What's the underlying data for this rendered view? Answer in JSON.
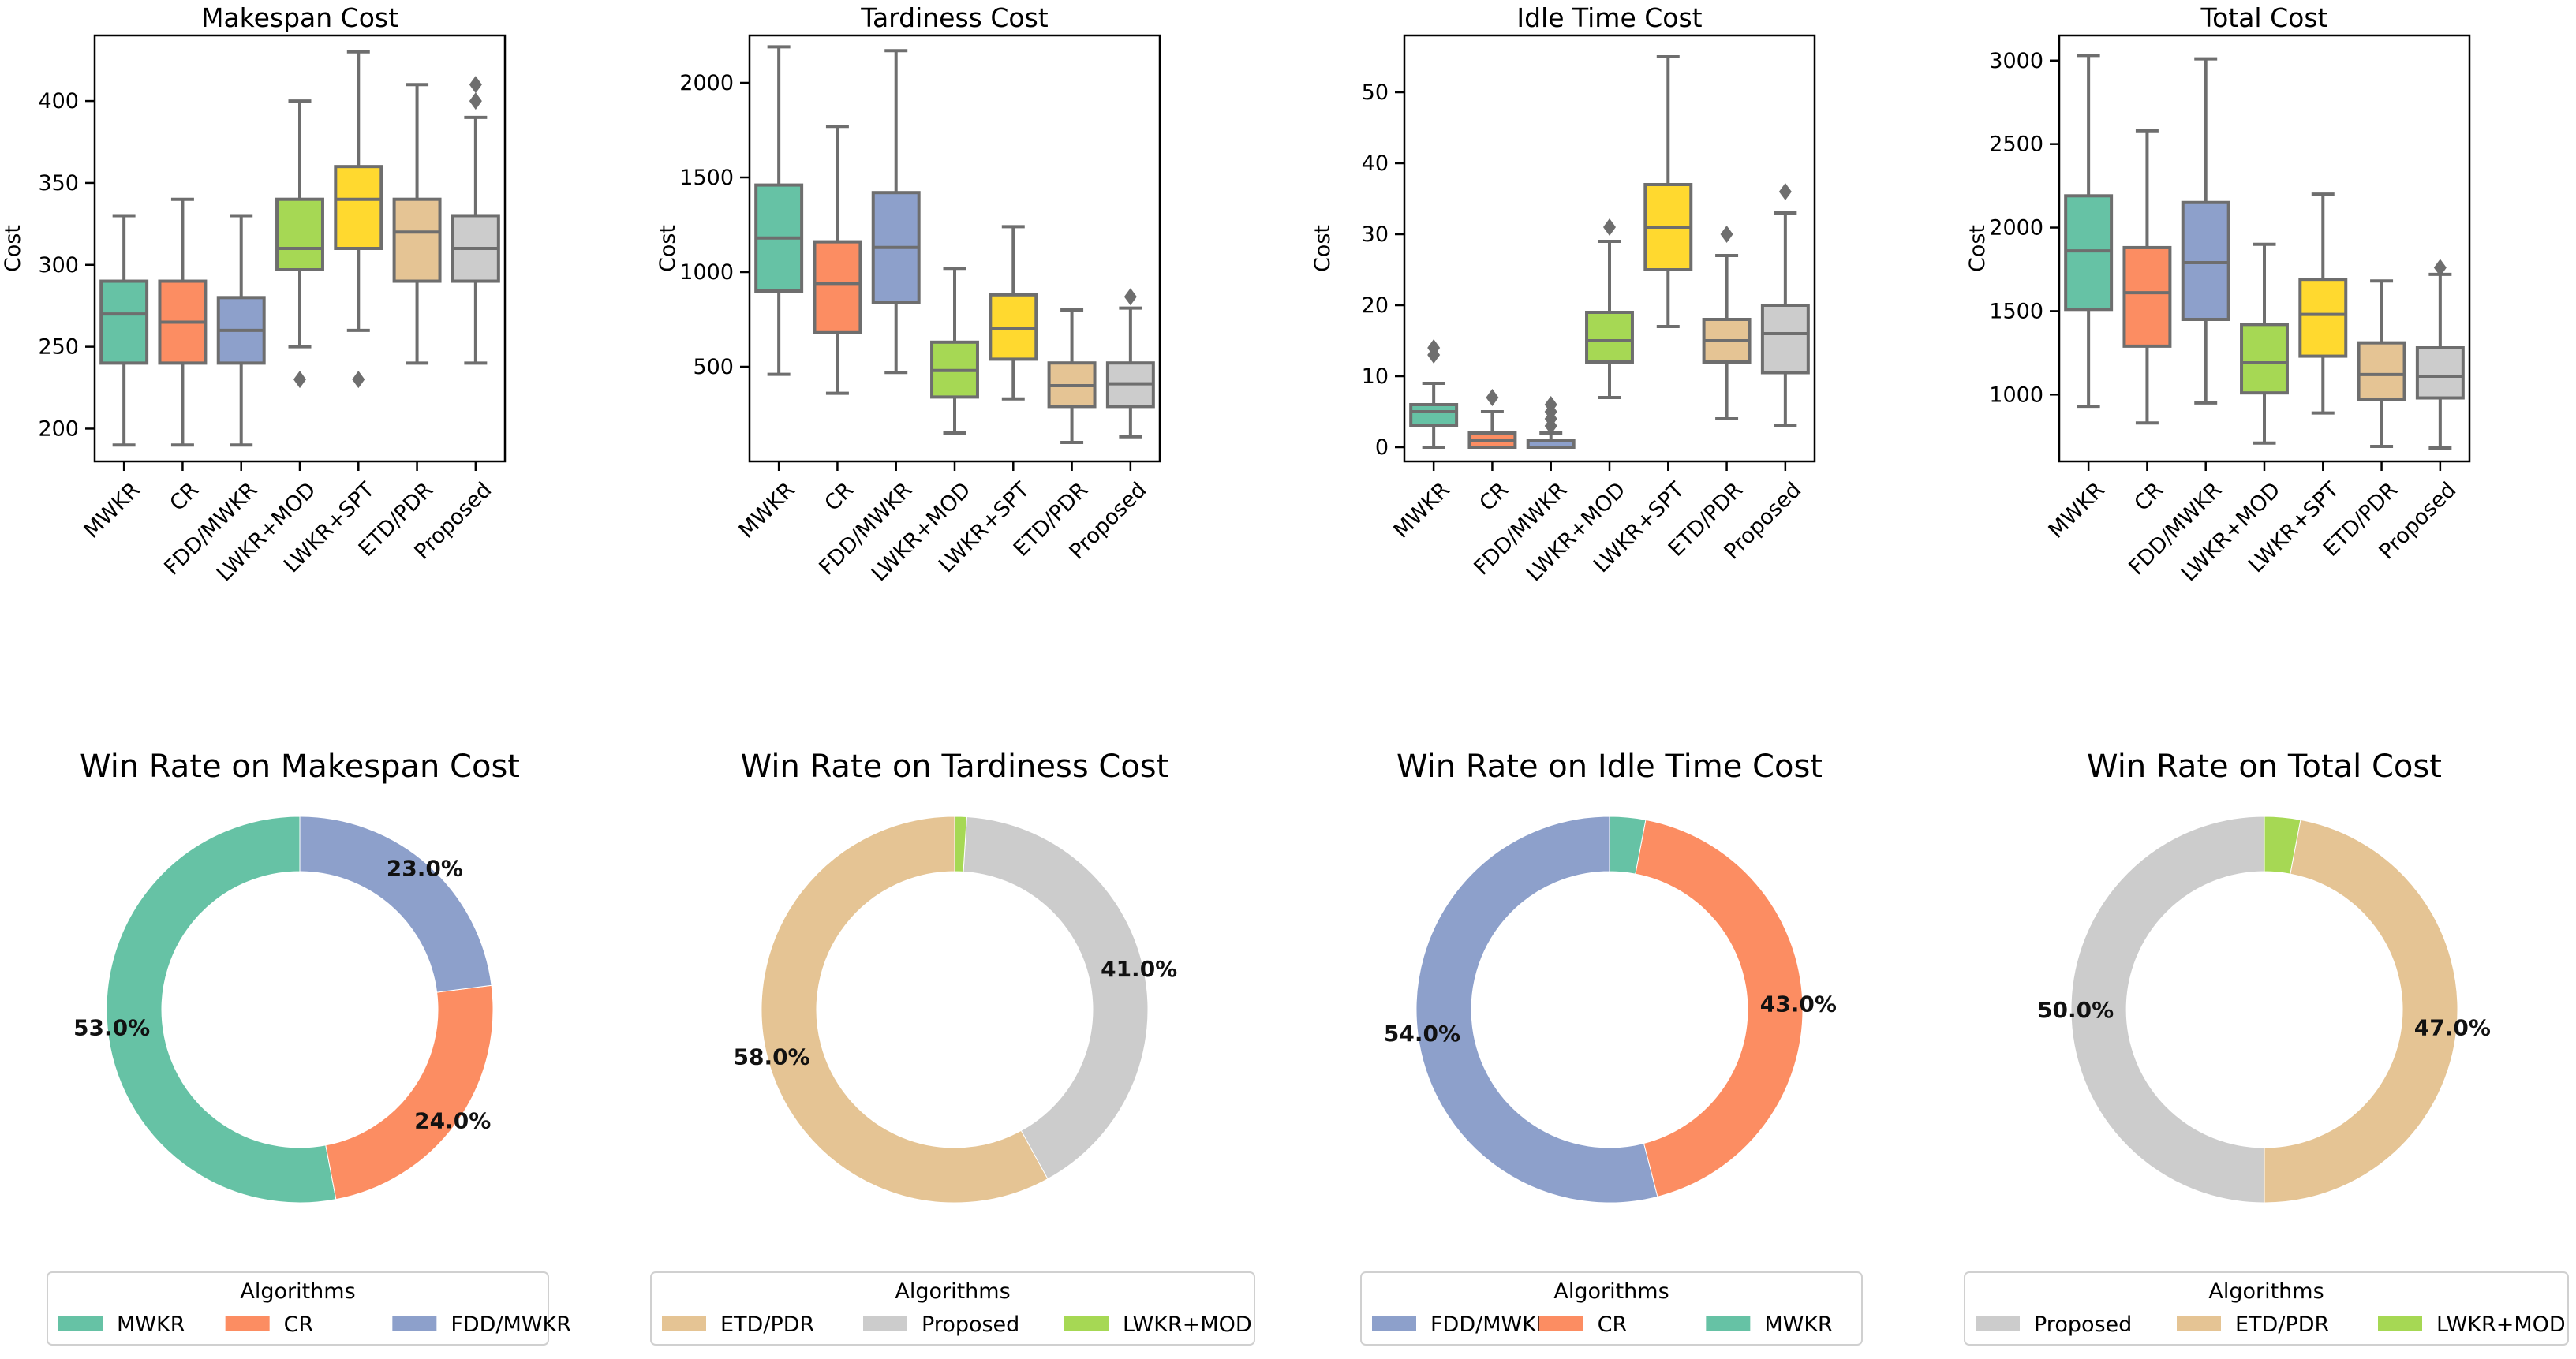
{
  "chart_data": [
    {
      "type": "box",
      "title": "Makespan Cost",
      "ylabel": "Cost",
      "categories": [
        "MWKR",
        "CR",
        "FDD/MWKR",
        "LWKR+MOD",
        "LWKR+SPT",
        "ETD/PDR",
        "Proposed"
      ],
      "ylim": [
        180,
        440
      ],
      "yticks": [
        200,
        250,
        300,
        350,
        400
      ],
      "colors": [
        "#66c2a5",
        "#fc8d62",
        "#8da0cb",
        "#a6d854",
        "#ffd92f",
        "#e5c494",
        "#cccccc"
      ],
      "boxes": [
        {
          "whislo": 190,
          "q1": 240,
          "med": 270,
          "q3": 290,
          "whishi": 330,
          "fliers": []
        },
        {
          "whislo": 190,
          "q1": 240,
          "med": 265,
          "q3": 290,
          "whishi": 340,
          "fliers": []
        },
        {
          "whislo": 190,
          "q1": 240,
          "med": 260,
          "q3": 280,
          "whishi": 330,
          "fliers": []
        },
        {
          "whislo": 250,
          "q1": 297,
          "med": 310,
          "q3": 340,
          "whishi": 400,
          "fliers": [
            230
          ]
        },
        {
          "whislo": 260,
          "q1": 310,
          "med": 340,
          "q3": 360,
          "whishi": 430,
          "fliers": [
            230
          ]
        },
        {
          "whislo": 240,
          "q1": 290,
          "med": 320,
          "q3": 340,
          "whishi": 410,
          "fliers": []
        },
        {
          "whislo": 240,
          "q1": 290,
          "med": 310,
          "q3": 330,
          "whishi": 390,
          "fliers": [
            400,
            410
          ]
        }
      ]
    },
    {
      "type": "box",
      "title": "Tardiness Cost",
      "ylabel": "Cost",
      "categories": [
        "MWKR",
        "CR",
        "FDD/MWKR",
        "LWKR+MOD",
        "LWKR+SPT",
        "ETD/PDR",
        "Proposed"
      ],
      "ylim": [
        0,
        2250
      ],
      "yticks": [
        500,
        1000,
        1500,
        2000
      ],
      "colors": [
        "#66c2a5",
        "#fc8d62",
        "#8da0cb",
        "#a6d854",
        "#ffd92f",
        "#e5c494",
        "#cccccc"
      ],
      "boxes": [
        {
          "whislo": 460,
          "q1": 900,
          "med": 1180,
          "q3": 1460,
          "whishi": 2190,
          "fliers": []
        },
        {
          "whislo": 360,
          "q1": 680,
          "med": 940,
          "q3": 1160,
          "whishi": 1770,
          "fliers": []
        },
        {
          "whislo": 470,
          "q1": 840,
          "med": 1130,
          "q3": 1420,
          "whishi": 2170,
          "fliers": []
        },
        {
          "whislo": 150,
          "q1": 340,
          "med": 480,
          "q3": 630,
          "whishi": 1020,
          "fliers": []
        },
        {
          "whislo": 330,
          "q1": 540,
          "med": 700,
          "q3": 880,
          "whishi": 1240,
          "fliers": []
        },
        {
          "whislo": 100,
          "q1": 290,
          "med": 400,
          "q3": 520,
          "whishi": 800,
          "fliers": []
        },
        {
          "whislo": 130,
          "q1": 290,
          "med": 410,
          "q3": 520,
          "whishi": 810,
          "fliers": [
            870
          ]
        }
      ]
    },
    {
      "type": "box",
      "title": "Idle Time Cost",
      "ylabel": "Cost",
      "categories": [
        "MWKR",
        "CR",
        "FDD/MWKR",
        "LWKR+MOD",
        "LWKR+SPT",
        "ETD/PDR",
        "Proposed"
      ],
      "ylim": [
        -2,
        58
      ],
      "yticks": [
        0,
        10,
        20,
        30,
        40,
        50
      ],
      "colors": [
        "#66c2a5",
        "#fc8d62",
        "#8da0cb",
        "#a6d854",
        "#ffd92f",
        "#e5c494",
        "#cccccc"
      ],
      "boxes": [
        {
          "whislo": 0,
          "q1": 3,
          "med": 5,
          "q3": 6,
          "whishi": 9,
          "fliers": [
            13,
            14
          ]
        },
        {
          "whislo": 0,
          "q1": 0,
          "med": 1,
          "q3": 2,
          "whishi": 5,
          "fliers": [
            7
          ]
        },
        {
          "whislo": 0,
          "q1": 0,
          "med": 0,
          "q3": 1,
          "whishi": 2,
          "fliers": [
            3,
            4,
            5,
            6
          ]
        },
        {
          "whislo": 7,
          "q1": 12,
          "med": 15,
          "q3": 19,
          "whishi": 29,
          "fliers": [
            31
          ]
        },
        {
          "whislo": 17,
          "q1": 25,
          "med": 31,
          "q3": 37,
          "whishi": 55,
          "fliers": []
        },
        {
          "whislo": 4,
          "q1": 12,
          "med": 15,
          "q3": 18,
          "whishi": 27,
          "fliers": [
            30
          ]
        },
        {
          "whislo": 3,
          "q1": 10.5,
          "med": 16,
          "q3": 20,
          "whishi": 33,
          "fliers": [
            36
          ]
        }
      ]
    },
    {
      "type": "box",
      "title": "Total Cost",
      "ylabel": "Cost",
      "categories": [
        "MWKR",
        "CR",
        "FDD/MWKR",
        "LWKR+MOD",
        "LWKR+SPT",
        "ETD/PDR",
        "Proposed"
      ],
      "ylim": [
        600,
        3150
      ],
      "yticks": [
        1000,
        1500,
        2000,
        2500,
        3000
      ],
      "colors": [
        "#66c2a5",
        "#fc8d62",
        "#8da0cb",
        "#a6d854",
        "#ffd92f",
        "#e5c494",
        "#cccccc"
      ],
      "boxes": [
        {
          "whislo": 930,
          "q1": 1510,
          "med": 1860,
          "q3": 2190,
          "whishi": 3030,
          "fliers": []
        },
        {
          "whislo": 830,
          "q1": 1290,
          "med": 1610,
          "q3": 1880,
          "whishi": 2580,
          "fliers": []
        },
        {
          "whislo": 950,
          "q1": 1450,
          "med": 1790,
          "q3": 2150,
          "whishi": 3010,
          "fliers": []
        },
        {
          "whislo": 710,
          "q1": 1010,
          "med": 1190,
          "q3": 1420,
          "whishi": 1900,
          "fliers": []
        },
        {
          "whislo": 890,
          "q1": 1230,
          "med": 1480,
          "q3": 1690,
          "whishi": 2200,
          "fliers": []
        },
        {
          "whislo": 690,
          "q1": 970,
          "med": 1120,
          "q3": 1310,
          "whishi": 1680,
          "fliers": []
        },
        {
          "whislo": 680,
          "q1": 980,
          "med": 1110,
          "q3": 1280,
          "whishi": 1720,
          "fliers": [
            1760
          ]
        }
      ]
    },
    {
      "type": "donut",
      "title": "Win Rate on Makespan Cost",
      "slices": [
        {
          "label": "MWKR",
          "value": 53.0,
          "color": "#66c2a5",
          "text": "53.0%"
        },
        {
          "label": "CR",
          "value": 24.0,
          "color": "#fc8d62",
          "text": "24.0%"
        },
        {
          "label": "FDD/MWKR",
          "value": 23.0,
          "color": "#8da0cb",
          "text": "23.0%"
        }
      ],
      "legend_title": "Algorithms",
      "legend_items": [
        {
          "label": "MWKR",
          "color": "#66c2a5"
        },
        {
          "label": "CR",
          "color": "#fc8d62"
        },
        {
          "label": "FDD/MWKR",
          "color": "#8da0cb"
        }
      ]
    },
    {
      "type": "donut",
      "title": "Win Rate on Tardiness Cost",
      "slices": [
        {
          "label": "ETD/PDR",
          "value": 58.0,
          "color": "#e5c494",
          "text": "58.0%"
        },
        {
          "label": "Proposed",
          "value": 41.0,
          "color": "#cccccc",
          "text": "41.0%"
        },
        {
          "label": "LWKR+MOD",
          "value": 1.0,
          "color": "#a6d854",
          "text": ""
        }
      ],
      "legend_title": "Algorithms",
      "legend_items": [
        {
          "label": "ETD/PDR",
          "color": "#e5c494"
        },
        {
          "label": "Proposed",
          "color": "#cccccc"
        },
        {
          "label": "LWKR+MOD",
          "color": "#a6d854"
        }
      ]
    },
    {
      "type": "donut",
      "title": "Win Rate on Idle Time Cost",
      "slices": [
        {
          "label": "FDD/MWKR",
          "value": 54.0,
          "color": "#8da0cb",
          "text": "54.0%"
        },
        {
          "label": "CR",
          "value": 43.0,
          "color": "#fc8d62",
          "text": "43.0%"
        },
        {
          "label": "MWKR",
          "value": 3.0,
          "color": "#66c2a5",
          "text": ""
        }
      ],
      "legend_title": "Algorithms",
      "legend_items": [
        {
          "label": "FDD/MWKR",
          "color": "#8da0cb"
        },
        {
          "label": "CR",
          "color": "#fc8d62"
        },
        {
          "label": "MWKR",
          "color": "#66c2a5"
        }
      ]
    },
    {
      "type": "donut",
      "title": "Win Rate on Total Cost",
      "slices": [
        {
          "label": "Proposed",
          "value": 50.0,
          "color": "#cccccc",
          "text": "50.0%"
        },
        {
          "label": "ETD/PDR",
          "value": 47.0,
          "color": "#e5c494",
          "text": "47.0%"
        },
        {
          "label": "LWKR+MOD",
          "value": 3.0,
          "color": "#a6d854",
          "text": ""
        }
      ],
      "legend_title": "Algorithms",
      "legend_items": [
        {
          "label": "Proposed",
          "color": "#cccccc"
        },
        {
          "label": "ETD/PDR",
          "color": "#e5c494"
        },
        {
          "label": "LWKR+MOD",
          "color": "#a6d854"
        }
      ]
    }
  ]
}
